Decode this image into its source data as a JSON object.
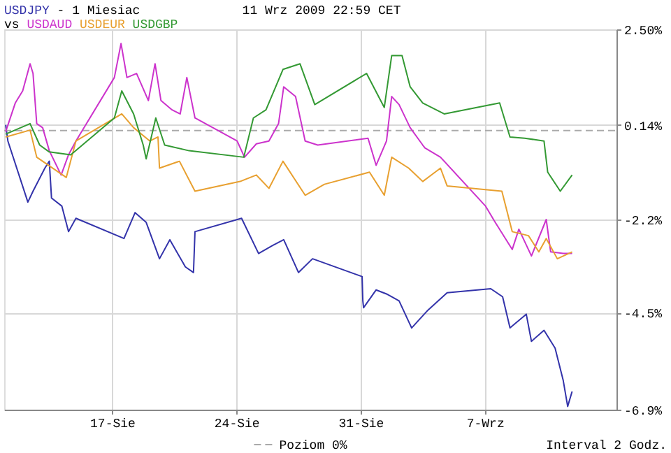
{
  "chart_data": {
    "type": "line",
    "title": "11 Wrz 2009 22:59 CET",
    "subtitle": "- 1 Miesiac",
    "legend_title": "vs",
    "legend": "bottom",
    "grid": true,
    "line_style": "solid",
    "marker": "none",
    "xlim": [
      "2009-08-10T22:00",
      "2009-09-14T10:00"
    ],
    "xticks": [
      {
        "value": "2009-08-17",
        "label": "17-Sie"
      },
      {
        "value": "2009-08-24",
        "label": "24-Sie"
      },
      {
        "value": "2009-08-31",
        "label": "31-Sie"
      },
      {
        "value": "2009-09-07",
        "label": "7-Wrz"
      }
    ],
    "ylim": [
      -6.9,
      2.5
    ],
    "yticks": [
      {
        "value": 2.5,
        "label": "2.50%"
      },
      {
        "value": 0.14,
        "label": "0.14%"
      },
      {
        "value": -2.2,
        "label": "-2.2%"
      },
      {
        "value": -4.5,
        "label": "-4.5%"
      },
      {
        "value": -6.9,
        "label": "-6.9%"
      }
    ],
    "ref_lines": [
      {
        "axis": "y",
        "value": 0,
        "label": "Poziom 0%",
        "color": "#aaaaaa",
        "line_style": "dashed"
      }
    ],
    "annotations": [
      "Interval 2 Godz."
    ],
    "series": [
      {
        "name": "USDJPY",
        "color": "#3333aa",
        "x": [
          "2009-08-11T00:00",
          "2009-08-11T03:00",
          "2009-08-12T06:00",
          "2009-08-12T13:00",
          "2009-08-13T05:00",
          "2009-08-13T11:00",
          "2009-08-13T14:00",
          "2009-08-14T04:00",
          "2009-08-14T13:00",
          "2009-08-14T23:00",
          "2009-08-17T16:00",
          "2009-08-18T07:00",
          "2009-08-18T22:00",
          "2009-08-19T16:00",
          "2009-08-20T06:00",
          "2009-08-21T03:00",
          "2009-08-21T14:00",
          "2009-08-21T16:00",
          "2009-08-24T07:00",
          "2009-08-25T06:00",
          "2009-08-26T01:00",
          "2009-08-26T16:00",
          "2009-08-27T12:00",
          "2009-08-28T07:00",
          "2009-08-31T02:00",
          "2009-08-31T03:00",
          "2009-08-31T04:00",
          "2009-08-31T21:00",
          "2009-09-01T11:00",
          "2009-09-02T04:00",
          "2009-09-02T21:00",
          "2009-09-03T19:00",
          "2009-09-04T21:00",
          "2009-09-07T08:00",
          "2009-09-08T00:00",
          "2009-09-08T10:00",
          "2009-09-09T08:00",
          "2009-09-09T15:00",
          "2009-09-10T08:00",
          "2009-09-10T23:00",
          "2009-09-11T10:00",
          "2009-09-11T16:00",
          "2009-09-11T22:00"
        ],
        "values": [
          0.14,
          -0.26,
          -1.77,
          -1.5,
          -0.93,
          -0.76,
          -1.67,
          -1.87,
          -2.5,
          -2.17,
          -2.67,
          -2.03,
          -2.27,
          -3.17,
          -2.7,
          -3.37,
          -3.51,
          -2.5,
          -2.17,
          -3.04,
          -2.84,
          -2.7,
          -3.51,
          -3.17,
          -3.61,
          -4.21,
          -4.38,
          -3.94,
          -4.04,
          -4.21,
          -4.88,
          -4.44,
          -4.01,
          -3.91,
          -4.11,
          -4.88,
          -4.54,
          -5.21,
          -4.94,
          -5.38,
          -6.18,
          -6.82,
          -6.45
        ]
      },
      {
        "name": "USDAUD",
        "color": "#cc33cc",
        "x": [
          "2009-08-11T00:00",
          "2009-08-11T13:00",
          "2009-08-11T23:00",
          "2009-08-12T09:00",
          "2009-08-12T13:00",
          "2009-08-12T18:00",
          "2009-08-13T02:00",
          "2009-08-13T11:00",
          "2009-08-14T03:00",
          "2009-08-14T13:00",
          "2009-08-14T23:00",
          "2009-08-17T03:00",
          "2009-08-17T12:00",
          "2009-08-17T20:00",
          "2009-08-18T09:00",
          "2009-08-19T01:00",
          "2009-08-19T10:00",
          "2009-08-19T18:00",
          "2009-08-20T09:00",
          "2009-08-20T20:00",
          "2009-08-21T05:00",
          "2009-08-21T16:00",
          "2009-08-24T01:00",
          "2009-08-24T11:00",
          "2009-08-25T03:00",
          "2009-08-25T20:00",
          "2009-08-26T09:00",
          "2009-08-26T16:00",
          "2009-08-27T08:00",
          "2009-08-27T21:00",
          "2009-08-28T14:00",
          "2009-08-31T10:00",
          "2009-08-31T21:00",
          "2009-09-01T11:00",
          "2009-09-01T18:00",
          "2009-09-02T04:00",
          "2009-09-02T19:00",
          "2009-09-03T12:00",
          "2009-09-03T15:00",
          "2009-09-04T12:00",
          "2009-09-07T01:00",
          "2009-09-07T14:00",
          "2009-09-08T13:00",
          "2009-09-08T22:00",
          "2009-09-09T15:00",
          "2009-09-10T11:00",
          "2009-09-10T17:00",
          "2009-09-11T10:00",
          "2009-09-11T22:00"
        ],
        "values": [
          -0.03,
          0.68,
          0.98,
          1.65,
          1.41,
          0.17,
          0.07,
          -0.5,
          -1.1,
          -0.6,
          -0.26,
          1.31,
          2.15,
          1.31,
          1.41,
          0.74,
          1.65,
          0.74,
          0.51,
          0.41,
          1.31,
          0.31,
          -0.26,
          -0.66,
          -0.33,
          -0.26,
          0.17,
          1.08,
          0.84,
          -0.26,
          -0.36,
          -0.19,
          -0.86,
          -0.26,
          0.84,
          0.64,
          0.07,
          -0.36,
          -0.43,
          -0.66,
          -1.87,
          -2.27,
          -2.94,
          -2.44,
          -3.1,
          -2.2,
          -3.0,
          -3.04,
          -3.04
        ]
      },
      {
        "name": "USDEUR",
        "color": "#e8a030",
        "x": [
          "2009-08-11T00:00",
          "2009-08-12T09:00",
          "2009-08-12T18:00",
          "2009-08-14T10:00",
          "2009-08-14T23:00",
          "2009-08-17T13:00",
          "2009-08-18T05:00",
          "2009-08-19T03:00",
          "2009-08-19T14:00",
          "2009-08-19T16:00",
          "2009-08-20T19:00",
          "2009-08-21T16:00",
          "2009-08-24T05:00",
          "2009-08-25T03:00",
          "2009-08-25T20:00",
          "2009-08-26T15:00",
          "2009-08-27T21:00",
          "2009-08-28T23:00",
          "2009-08-31T12:00",
          "2009-09-01T08:00",
          "2009-09-01T18:00",
          "2009-09-02T17:00",
          "2009-09-03T12:00",
          "2009-09-04T12:00",
          "2009-09-04T21:00",
          "2009-09-07T23:00",
          "2009-09-08T13:00",
          "2009-09-09T11:00",
          "2009-09-10T01:00",
          "2009-09-10T11:00",
          "2009-09-11T02:00",
          "2009-09-11T22:00"
        ],
        "values": [
          -0.16,
          0.01,
          -0.66,
          -1.16,
          -0.26,
          0.41,
          0.07,
          -0.26,
          -0.16,
          -0.93,
          -0.76,
          -1.5,
          -1.26,
          -1.1,
          -1.43,
          -0.76,
          -1.6,
          -1.33,
          -1.03,
          -1.6,
          -0.66,
          -0.93,
          -1.26,
          -0.93,
          -1.37,
          -1.5,
          -2.5,
          -2.6,
          -3.0,
          -2.67,
          -3.17,
          -3.0
        ]
      },
      {
        "name": "USDGBP",
        "color": "#339933",
        "x": [
          "2009-08-11T00:00",
          "2009-08-12T09:00",
          "2009-08-12T22:00",
          "2009-08-13T11:00",
          "2009-08-14T16:00",
          "2009-08-17T03:00",
          "2009-08-17T13:00",
          "2009-08-18T05:00",
          "2009-08-18T18:00",
          "2009-08-18T22:00",
          "2009-08-19T11:00",
          "2009-08-19T23:00",
          "2009-08-21T08:00",
          "2009-08-24T10:00",
          "2009-08-24T23:00",
          "2009-08-25T16:00",
          "2009-08-26T15:00",
          "2009-08-27T14:00",
          "2009-08-28T10:00",
          "2009-08-31T08:00",
          "2009-09-01T08:00",
          "2009-09-01T18:00",
          "2009-09-02T08:00",
          "2009-09-02T19:00",
          "2009-09-03T12:00",
          "2009-09-04T17:00",
          "2009-09-07T20:00",
          "2009-09-08T10:00",
          "2009-09-09T06:00",
          "2009-09-10T08:00",
          "2009-09-10T13:00",
          "2009-09-11T06:00",
          "2009-09-11T22:00"
        ],
        "values": [
          -0.09,
          0.17,
          -0.36,
          -0.53,
          -0.6,
          0.31,
          0.98,
          0.41,
          -0.36,
          -0.7,
          0.31,
          -0.36,
          -0.5,
          -0.66,
          0.31,
          0.51,
          1.51,
          1.65,
          0.64,
          1.41,
          0.57,
          1.85,
          1.85,
          1.08,
          0.68,
          0.41,
          0.68,
          -0.16,
          -0.19,
          -0.26,
          -1.03,
          -1.5,
          -1.1
        ]
      }
    ]
  }
}
